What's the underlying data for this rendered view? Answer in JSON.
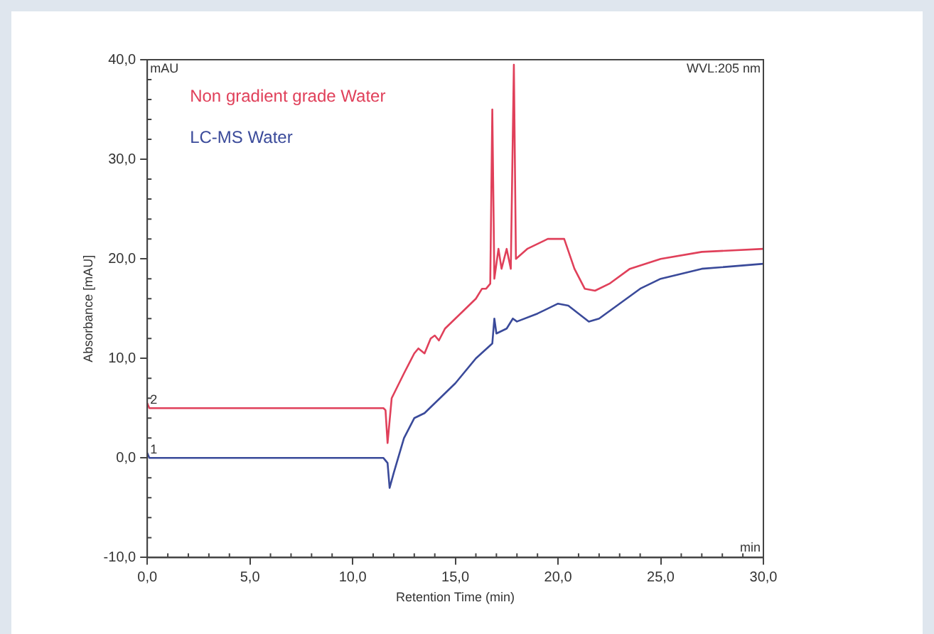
{
  "chart_data": {
    "type": "line",
    "xlabel": "Retention Time (min)",
    "ylabel": "Absorbance [mAU]",
    "xlim": [
      0,
      30
    ],
    "xticks": [
      {
        "value": 0,
        "label": "0,0"
      },
      {
        "value": 5,
        "label": "5,0"
      },
      {
        "value": 10,
        "label": "10,0"
      },
      {
        "value": 15,
        "label": "15,0"
      },
      {
        "value": 20,
        "label": "20,0"
      },
      {
        "value": 25,
        "label": "25,0"
      },
      {
        "value": 30,
        "label": "30,0"
      }
    ],
    "ylim": [
      -10,
      40
    ],
    "yticks": [
      {
        "value": -10,
        "label": "-10,0"
      },
      {
        "value": 0,
        "label": "0,0"
      },
      {
        "value": 10,
        "label": "10,0"
      },
      {
        "value": 20,
        "label": "20,0"
      },
      {
        "value": 30,
        "label": "30,0"
      },
      {
        "value": 40,
        "label": "40,0"
      }
    ],
    "grid": false,
    "legend": "top left",
    "marker": "none",
    "line_style": "solid",
    "annotations": [
      "mAU",
      "WVL:205 nm",
      "min",
      {
        "text": "2",
        "x": 0,
        "y": 5
      },
      {
        "text": "1",
        "x": 0,
        "y": 0
      }
    ],
    "series": [
      {
        "name": "Non gradient grade Water",
        "color": "#e0405a",
        "x": [
          0,
          0.1,
          11.5,
          11.6,
          11.7,
          11.9,
          12.5,
          13.0,
          13.2,
          13.5,
          13.8,
          14.0,
          14.2,
          14.5,
          15.0,
          15.5,
          16.0,
          16.3,
          16.5,
          16.7,
          16.8,
          16.9,
          17.1,
          17.25,
          17.5,
          17.7,
          17.85,
          17.95,
          18.5,
          19.5,
          20.3,
          20.8,
          21.3,
          21.8,
          22.5,
          23.5,
          25,
          27,
          30
        ],
        "values": [
          5.5,
          5.0,
          5.0,
          4.8,
          1.5,
          6,
          8.5,
          10.5,
          11,
          10.5,
          12,
          12.3,
          11.8,
          13,
          14,
          15,
          16,
          17,
          17,
          17.5,
          35,
          18,
          21,
          19,
          21,
          19,
          39.5,
          20,
          21,
          22,
          22,
          19,
          17,
          16.8,
          17.5,
          19,
          20,
          20.7,
          21
        ]
      },
      {
        "name": "LC-MS Water",
        "color": "#3a4a9a",
        "x": [
          0,
          0.1,
          11.5,
          11.7,
          11.8,
          12.0,
          12.5,
          13.0,
          13.5,
          14,
          15,
          16,
          16.8,
          16.9,
          17.0,
          17.5,
          17.8,
          18,
          19,
          20,
          20.5,
          21.0,
          21.5,
          22,
          23,
          24,
          25,
          27,
          30
        ],
        "values": [
          0.5,
          0,
          0,
          -0.5,
          -3,
          -1.5,
          2,
          4,
          4.5,
          5.5,
          7.5,
          10,
          11.5,
          14,
          12.5,
          13,
          14,
          13.7,
          14.5,
          15.5,
          15.3,
          14.5,
          13.7,
          14,
          15.5,
          17,
          18,
          19,
          19.5
        ]
      }
    ]
  }
}
